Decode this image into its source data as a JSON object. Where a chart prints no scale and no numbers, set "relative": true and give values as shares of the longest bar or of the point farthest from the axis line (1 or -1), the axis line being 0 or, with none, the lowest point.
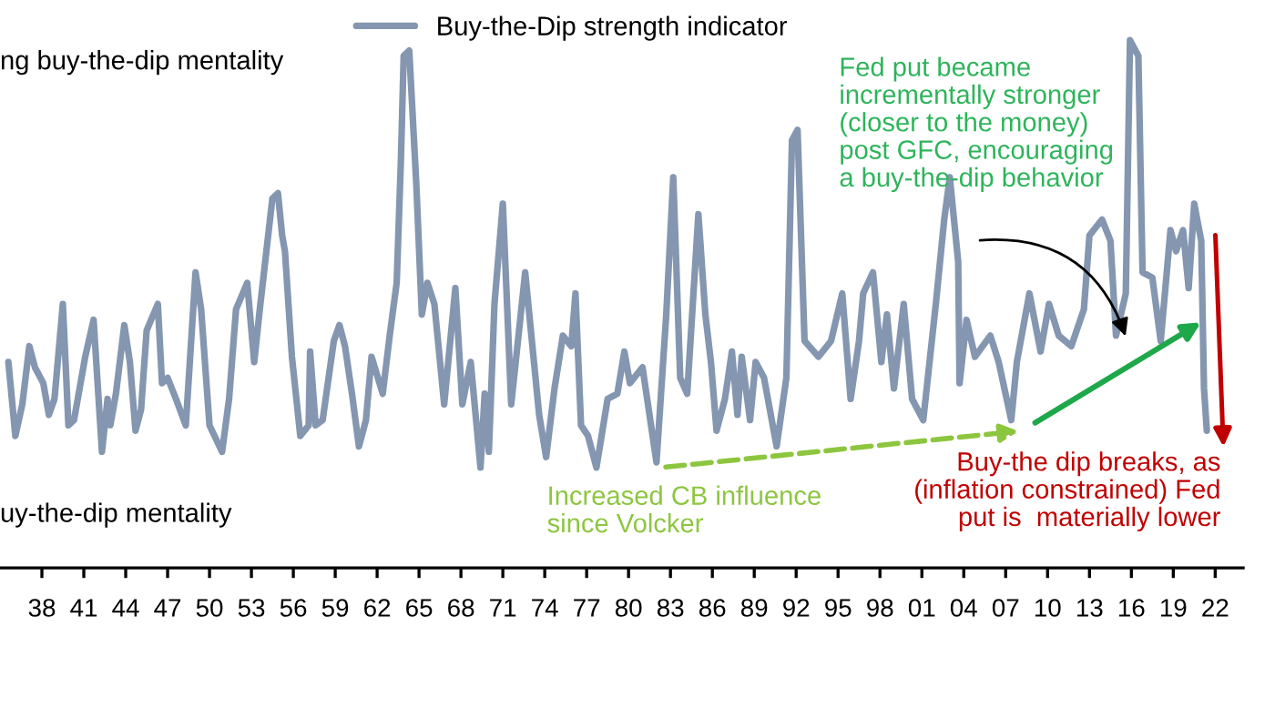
{
  "chart_data": {
    "type": "line",
    "relative": true,
    "legend": "top",
    "xlim": [
      1935,
      2024
    ],
    "xticks": [
      {
        "value": 1938,
        "label": "38"
      },
      {
        "value": 1941,
        "label": "41"
      },
      {
        "value": 1944,
        "label": "44"
      },
      {
        "value": 1947,
        "label": "47"
      },
      {
        "value": 1950,
        "label": "50"
      },
      {
        "value": 1953,
        "label": "53"
      },
      {
        "value": 1956,
        "label": "56"
      },
      {
        "value": 1959,
        "label": "59"
      },
      {
        "value": 1962,
        "label": "62"
      },
      {
        "value": 1965,
        "label": "65"
      },
      {
        "value": 1968,
        "label": "68"
      },
      {
        "value": 1971,
        "label": "71"
      },
      {
        "value": 1974,
        "label": "74"
      },
      {
        "value": 1977,
        "label": "77"
      },
      {
        "value": 1980,
        "label": "80"
      },
      {
        "value": 1983,
        "label": "83"
      },
      {
        "value": 1986,
        "label": "86"
      },
      {
        "value": 1989,
        "label": "89"
      },
      {
        "value": 1992,
        "label": "92"
      },
      {
        "value": 1995,
        "label": "95"
      },
      {
        "value": 1998,
        "label": "98"
      },
      {
        "value": 2001,
        "label": "01"
      },
      {
        "value": 2004,
        "label": "04"
      },
      {
        "value": 2007,
        "label": "07"
      },
      {
        "value": 2010,
        "label": "10"
      },
      {
        "value": 2013,
        "label": "13"
      },
      {
        "value": 2016,
        "label": "16"
      },
      {
        "value": 2019,
        "label": "19"
      },
      {
        "value": 2022,
        "label": "22"
      }
    ],
    "x": [
      1935.6,
      1936.1,
      1936.6,
      1937.1,
      1937.5,
      1938.1,
      1938.5,
      1938.9,
      1939.5,
      1939.9,
      1940.3,
      1941.1,
      1941.7,
      1942.3,
      1942.7,
      1942.9,
      1943.3,
      1943.9,
      1944.3,
      1944.7,
      1945.1,
      1945.5,
      1946.3,
      1946.6,
      1947.0,
      1947.6,
      1948.3,
      1949.0,
      1949.4,
      1950.0,
      1950.9,
      1951.4,
      1951.9,
      1952.7,
      1953.2,
      1953.6,
      1954.5,
      1954.9,
      1955.2,
      1955.4,
      1955.9,
      1956.5,
      1957.1,
      1957.2,
      1957.6,
      1958.1,
      1958.9,
      1959.3,
      1959.7,
      1960.2,
      1960.7,
      1961.2,
      1961.6,
      1962.4,
      1962.9,
      1963.4,
      1963.7,
      1963.9,
      1964.3,
      1964.8,
      1965.2,
      1965.6,
      1966.1,
      1966.8,
      1967.6,
      1968.1,
      1968.7,
      1969.4,
      1969.7,
      1970.0,
      1970.4,
      1971.0,
      1971.6,
      1972.6,
      1973.6,
      1974.1,
      1974.7,
      1975.3,
      1975.9,
      1976.2,
      1976.6,
      1977.1,
      1977.7,
      1978.5,
      1979.2,
      1979.7,
      1980.1,
      1981.0,
      1982.0,
      1982.7,
      1983.2,
      1983.7,
      1984.2,
      1985.0,
      1985.5,
      1985.9,
      1986.3,
      1986.9,
      1987.4,
      1987.8,
      1988.1,
      1988.7,
      1989.1,
      1989.7,
      1990.6,
      1991.3,
      1991.7,
      1992.1,
      1992.6,
      1993.6,
      1994.5,
      1995.3,
      1995.9,
      1996.5,
      1996.8,
      1997.5,
      1998.1,
      1998.5,
      1999.0,
      1999.7,
      2000.3,
      2001.1,
      2002.0,
      2002.6,
      2003.0,
      2003.6,
      2003.7,
      2004.2,
      2004.8,
      2005.9,
      2006.5,
      2007.4,
      2007.8,
      2008.7,
      2009.5,
      2010.1,
      2010.8,
      2011.7,
      2012.6,
      2013.0,
      2013.9,
      2014.5,
      2014.9,
      2015.6,
      2015.9,
      2016.5,
      2016.8,
      2017.5,
      2018.1,
      2018.8,
      2019.2,
      2019.7,
      2020.1,
      2020.5,
      2021.0,
      2021.2,
      2021.4
    ],
    "series": [
      {
        "name": "Buy-the-Dip strength indicator",
        "color": "#8496b0",
        "values": [
          0.39,
          0.25,
          0.31,
          0.42,
          0.38,
          0.35,
          0.29,
          0.32,
          0.5,
          0.27,
          0.28,
          0.4,
          0.47,
          0.22,
          0.32,
          0.27,
          0.33,
          0.46,
          0.39,
          0.26,
          0.3,
          0.45,
          0.5,
          0.35,
          0.36,
          0.32,
          0.27,
          0.56,
          0.49,
          0.27,
          0.22,
          0.32,
          0.49,
          0.54,
          0.39,
          0.49,
          0.7,
          0.71,
          0.63,
          0.6,
          0.4,
          0.25,
          0.27,
          0.41,
          0.27,
          0.28,
          0.43,
          0.46,
          0.42,
          0.33,
          0.23,
          0.28,
          0.4,
          0.33,
          0.44,
          0.54,
          0.77,
          0.97,
          0.98,
          0.73,
          0.48,
          0.54,
          0.5,
          0.31,
          0.53,
          0.31,
          0.39,
          0.19,
          0.33,
          0.22,
          0.5,
          0.69,
          0.31,
          0.56,
          0.29,
          0.21,
          0.34,
          0.44,
          0.42,
          0.52,
          0.27,
          0.25,
          0.19,
          0.32,
          0.33,
          0.41,
          0.35,
          0.38,
          0.2,
          0.48,
          0.74,
          0.36,
          0.33,
          0.67,
          0.48,
          0.39,
          0.26,
          0.32,
          0.41,
          0.29,
          0.4,
          0.28,
          0.39,
          0.36,
          0.23,
          0.36,
          0.81,
          0.83,
          0.43,
          0.4,
          0.43,
          0.52,
          0.32,
          0.43,
          0.52,
          0.56,
          0.39,
          0.48,
          0.34,
          0.5,
          0.32,
          0.28,
          0.5,
          0.66,
          0.74,
          0.58,
          0.35,
          0.47,
          0.4,
          0.44,
          0.39,
          0.28,
          0.39,
          0.52,
          0.41,
          0.5,
          0.44,
          0.42,
          0.49,
          0.63,
          0.66,
          0.62,
          0.44,
          0.52,
          1.0,
          0.97,
          0.56,
          0.55,
          0.43,
          0.64,
          0.6,
          0.64,
          0.53,
          0.69,
          0.62,
          0.34,
          0.26
        ]
      }
    ],
    "annotations": [
      "ng buy-the-dip mentality",
      "uy-the-dip mentality",
      "Fed put became\nincrementally stronger\n(closer to the money)\npost GFC, encouraging\na buy-the-dip behavior",
      "Increased CB influence\nsince Volcker",
      "Buy-the dip breaks, as\n(inflation constrained) Fed\nput is  materially lower"
    ]
  }
}
